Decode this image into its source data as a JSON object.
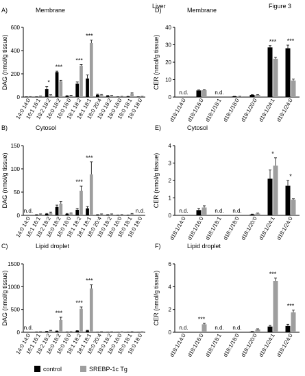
{
  "header": {
    "tissue": "Liver",
    "figure": "Figure 3"
  },
  "legend": {
    "items": [
      "control",
      "SREBP-1c Tg"
    ],
    "colors": [
      "#000000",
      "#9e9e9e"
    ]
  },
  "chart_data": [
    {
      "type": "bar",
      "panel": "A)",
      "subtitle": "Membrane",
      "ylabel": "DAG (nmol/g tissue)",
      "ylim": [
        0,
        600
      ],
      "yticks": [
        "0",
        "200",
        "400",
        "600"
      ],
      "categories": [
        "14:0 14:0",
        "16:1 16:1",
        "18:2 18:2",
        "16:0 18:2",
        "16:0 16:0",
        "18:1 18:2",
        "18:1 18:1",
        "18:0 20:4",
        "18:0 18:2",
        "18:0 16:0",
        "18:0 18:1",
        "18:0 18:0"
      ],
      "series": [
        {
          "name": "control",
          "values": [
            2,
            2,
            70,
            215,
            10,
            115,
            160,
            20,
            10,
            2,
            5,
            2
          ],
          "errors": [
            1,
            1,
            20,
            8,
            2,
            15,
            30,
            5,
            3,
            1,
            2,
            1
          ]
        },
        {
          "name": "SREBP-1c Tg",
          "values": [
            3,
            8,
            15,
            135,
            12,
            270,
            465,
            18,
            10,
            5,
            30,
            5
          ],
          "errors": [
            1,
            2,
            5,
            10,
            2,
            10,
            25,
            4,
            3,
            2,
            6,
            2
          ]
        }
      ],
      "significance": [
        "",
        "",
        "*",
        "***",
        "",
        "***",
        "***",
        "",
        "",
        "",
        "",
        ""
      ],
      "nd": []
    },
    {
      "type": "bar",
      "panel": "B)",
      "subtitle": "Cytosol",
      "ylabel": "DAG (nmol/g tissue)",
      "ylim": [
        0,
        150
      ],
      "yticks": [
        "0",
        "50",
        "100",
        "150"
      ],
      "categories": [
        "14:0 14:0",
        "16:1 16:1",
        "18:2 18:2",
        "16:0 18:2",
        "16:0 16:0",
        "18:1 18:2",
        "18:1 18:1",
        "18:0 20:4",
        "18:0 18:2",
        "18:0 16:0",
        "18:0 18:1",
        "18:0 18:0"
      ],
      "series": [
        {
          "name": "control",
          "values": [
            0,
            1,
            3,
            18,
            3,
            12,
            15,
            1,
            1,
            0.5,
            0.5,
            0
          ],
          "errors": [
            0,
            0.5,
            1,
            4,
            1,
            3,
            4,
            0.5,
            0.5,
            0.3,
            0.3,
            0
          ]
        },
        {
          "name": "SREBP-1c Tg",
          "values": [
            0,
            2,
            5,
            25,
            4,
            53,
            88,
            2,
            2,
            1,
            3,
            0
          ],
          "errors": [
            0,
            1,
            2,
            5,
            1,
            10,
            27,
            1,
            1,
            0.5,
            1,
            0
          ]
        }
      ],
      "significance": [
        "",
        "",
        "",
        "",
        "",
        "***",
        "***",
        "",
        "",
        "",
        "",
        ""
      ],
      "nd": [
        "n.d.",
        "",
        "",
        "",
        "",
        "",
        "",
        "",
        "",
        "",
        "",
        "n.d."
      ]
    },
    {
      "type": "bar",
      "panel": "C)",
      "subtitle": "Lipid droplet",
      "ylabel": "DAG (nmol/g tissue)",
      "ylim": [
        0,
        1500
      ],
      "yticks": [
        "0",
        "500",
        "1000",
        "1500"
      ],
      "categories": [
        "14:0 14:0",
        "16:1 16:1",
        "18:2 18:2",
        "16:0 18:2",
        "16:0 16:0",
        "18:1 18:2",
        "18:1 18:1",
        "18:0 20:4",
        "18:0 18:2",
        "18:0 16:0",
        "18:0 18:1",
        "18:0 18:0"
      ],
      "series": [
        {
          "name": "control",
          "values": [
            0,
            5,
            15,
            25,
            5,
            30,
            35,
            3,
            3,
            2,
            3,
            2
          ],
          "errors": [
            0,
            2,
            5,
            5,
            2,
            5,
            8,
            1,
            1,
            1,
            1,
            1
          ]
        },
        {
          "name": "SREBP-1c Tg",
          "values": [
            0,
            10,
            35,
            270,
            10,
            515,
            960,
            10,
            8,
            5,
            10,
            5
          ],
          "errors": [
            0,
            3,
            8,
            60,
            3,
            40,
            80,
            3,
            2,
            2,
            3,
            2
          ]
        }
      ],
      "significance": [
        "",
        "",
        "",
        "***",
        "",
        "***",
        "***",
        "",
        "",
        "",
        "",
        ""
      ],
      "nd": [
        "n.d.",
        "",
        "",
        "",
        "",
        "",
        "",
        "",
        "",
        "",
        "",
        ""
      ]
    },
    {
      "type": "bar",
      "panel": "D)",
      "subtitle": "Membrane",
      "ylabel": "CER (nmol/g tissue)",
      "ylim": [
        0,
        40
      ],
      "yticks": [
        "0",
        "10",
        "20",
        "30",
        "40"
      ],
      "categories": [
        "d18:1/14:0",
        "d18:1/16:0",
        "d18:1/18:1",
        "d18:1/18:0",
        "d18:1/20:0",
        "d18:1/24:1",
        "d18:1/24:0"
      ],
      "series": [
        {
          "name": "control",
          "values": [
            0,
            3.8,
            0,
            0.4,
            1.2,
            28.5,
            28
          ],
          "errors": [
            0,
            0.3,
            0,
            0.1,
            0.2,
            1,
            1.8
          ]
        },
        {
          "name": "SREBP-1c Tg",
          "values": [
            0,
            4,
            0,
            0.4,
            1.2,
            22,
            9.5
          ],
          "errors": [
            0,
            0.3,
            0,
            0.1,
            0.2,
            0.8,
            0.8
          ]
        }
      ],
      "significance": [
        "",
        "",
        "",
        "",
        "",
        "***",
        "***"
      ],
      "nd": [
        "n.d.",
        "",
        "n.d.",
        "",
        "",
        "",
        ""
      ]
    },
    {
      "type": "bar",
      "panel": "E)",
      "subtitle": "Cytosol",
      "ylabel": "CER (nmol/g tissue)",
      "ylim": [
        0,
        4
      ],
      "yticks": [
        "0",
        "1",
        "2",
        "3",
        "4"
      ],
      "categories": [
        "d18:1/14:0",
        "d18:1/16:0",
        "d18:1/18:1",
        "d18:1/18:0",
        "d18:1/20:0",
        "d18:1/24:1",
        "d18:1/24:0"
      ],
      "series": [
        {
          "name": "control",
          "values": [
            0,
            0.3,
            0,
            0,
            0.05,
            2.1,
            1.7
          ],
          "errors": [
            0,
            0.1,
            0,
            0,
            0.02,
            0.5,
            0.3
          ]
        },
        {
          "name": "SREBP-1c Tg",
          "values": [
            0,
            0.45,
            0,
            0,
            0.1,
            2.85,
            0.9
          ],
          "errors": [
            0,
            0.1,
            0,
            0,
            0.03,
            0.45,
            0.05
          ]
        }
      ],
      "significance": [
        "",
        "",
        "",
        "",
        "",
        "*",
        "*"
      ],
      "nd": [
        "n.d.",
        "",
        "n.d.",
        "n.d.",
        "",
        "",
        ""
      ]
    },
    {
      "type": "bar",
      "panel": "F)",
      "subtitle": "Lipid droplet",
      "ylabel": "CER (nmol/g tissue)",
      "ylim": [
        0,
        6
      ],
      "yticks": [
        "0",
        "2",
        "4",
        "6"
      ],
      "categories": [
        "d18:1/14:0",
        "d18:1/16:0",
        "d18:1/18:1",
        "d18:1/18:0",
        "d18:1/20:0",
        "d18:1/24:1",
        "d18:1/24:0"
      ],
      "series": [
        {
          "name": "control",
          "values": [
            0,
            0,
            0,
            0,
            0.05,
            0.5,
            0.55
          ],
          "errors": [
            0,
            0,
            0,
            0,
            0.02,
            0.1,
            0.15
          ]
        },
        {
          "name": "SREBP-1c Tg",
          "values": [
            0,
            0.7,
            0,
            0,
            0.25,
            4.5,
            1.75
          ],
          "errors": [
            0,
            0.08,
            0,
            0,
            0.05,
            0.25,
            0.2
          ]
        }
      ],
      "significance": [
        "",
        "***",
        "",
        "",
        "",
        "***",
        "***"
      ],
      "nd": [
        "n.d.",
        "",
        "n.d.",
        "n.d.",
        "",
        "",
        ""
      ]
    }
  ]
}
